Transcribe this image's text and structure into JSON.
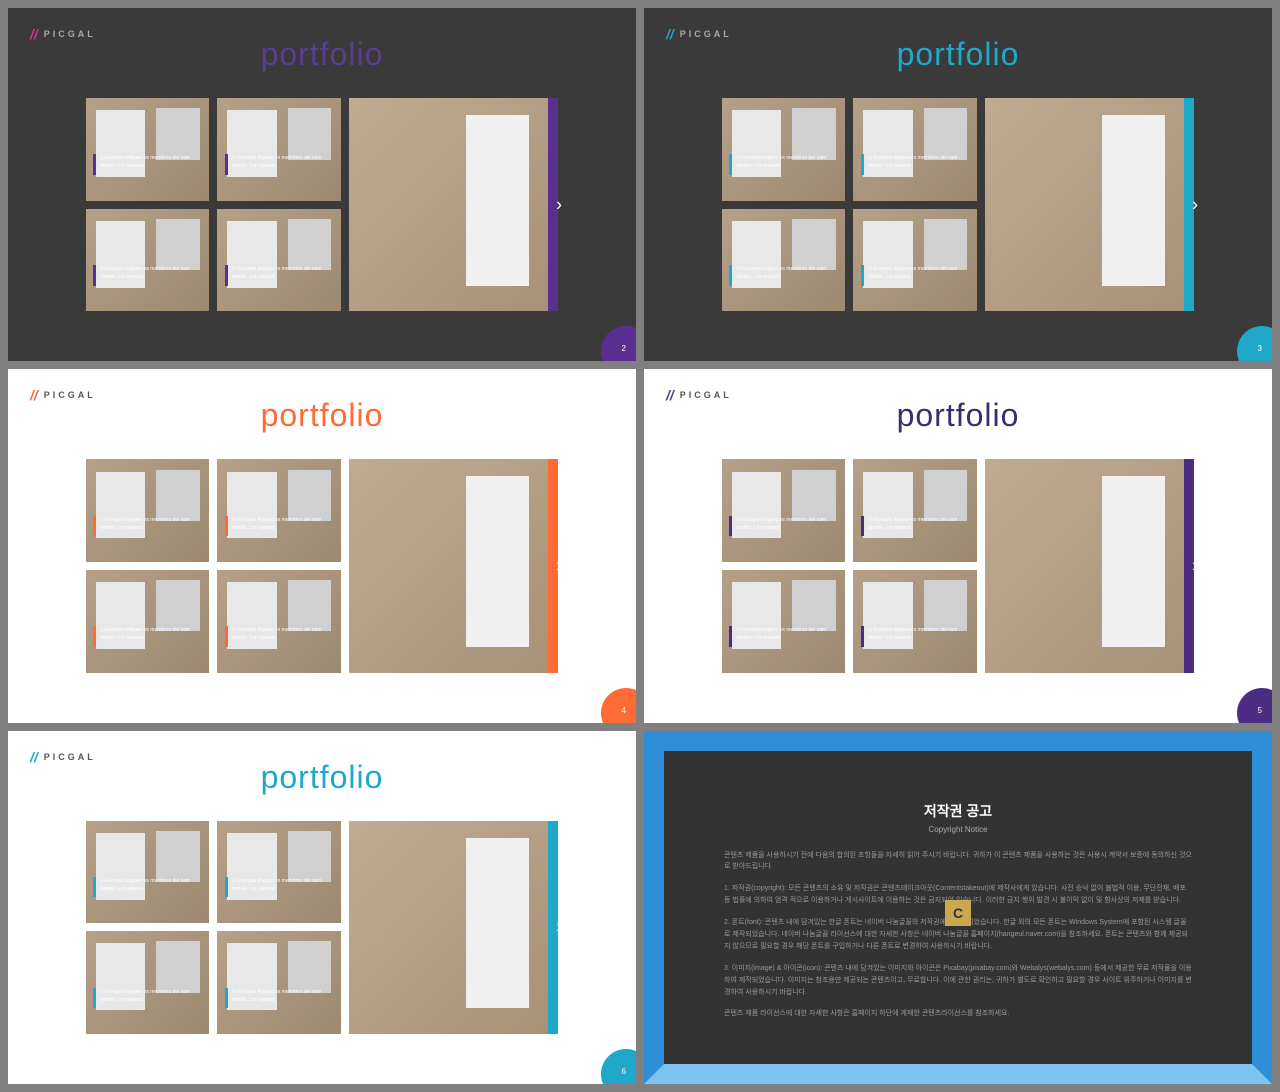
{
  "brand": "PICGAL",
  "title": "portfolio",
  "caption_line1": "Li Europan lingues es membres del sam",
  "caption_line2": "familie. Lor separat",
  "slides": [
    {
      "bg": "dark",
      "title_color": "#5b3e8f",
      "accent": "#5b2e91",
      "logo_color": "#d63384",
      "text_color": "#aaa",
      "page": "2"
    },
    {
      "bg": "dark",
      "title_color": "#1fa8c9",
      "accent": "#1fa8c9",
      "logo_color": "#1fa8c9",
      "text_color": "#aaa",
      "page": "3"
    },
    {
      "bg": "light",
      "title_color": "#ff6b35",
      "accent": "#ff6b35",
      "logo_color": "#ff6b35",
      "text_color": "#555",
      "page": "4"
    },
    {
      "bg": "light",
      "title_color": "#3d2e6b",
      "accent": "#4b2e83",
      "logo_color": "#5b3e8f",
      "text_color": "#555",
      "page": "5"
    },
    {
      "bg": "light",
      "title_color": "#1fa8c9",
      "accent": "#1fa8c9",
      "logo_color": "#1fa8c9",
      "text_color": "#555",
      "page": "6"
    }
  ],
  "copyright": {
    "title": "저작권 공고",
    "subtitle": "Copyright Notice",
    "p1": "콘텐츠 제품을 사용하시기 전에 다음의 합의된 조항들을 자세히 읽어 주시기 바랍니다. 귀하가 이 콘텐츠 제품을 사용하는 것은 사용시 계약서 보증에 동의하신 것으로 받아드립니다.",
    "p2": "1. 저작권(copyright): 모든 콘텐츠의 소유 및 저작권은 콘텐츠테이크아웃(Contentstakeout)에 제작사에게 있습니다. 사전 승낙 없이 불법적 이용, 무단전재, 배포 등 법률에 의하여 엄격 적으로 이용하거나 게시사이트에 이용하는 것은 금지되어 있습니다. 이러한 금지 행위 발견 시 불이익 없이 및 함사상의 저제를 받습니다.",
    "p3": "2. 폰트(font): 콘텐츠 내에 담겨있는 한글 폰트는 네이버 나눔글꼴의 저작권에서 제작되었습니다. 한글 외의 모든 폰트는 Windows System에 포함된 시스템 글꼴로 제작되었습니다. 네이버 나눔글꼴 라이선스에 대한 자세한 사항은 네이버 나눔글꼴 홈페이지(hangeul.naver.com)을 참조하세요. 폰트는 콘텐츠와 함께 제공되지 않으므로 필요할 경우 해당 폰트를 구입하거나 다른 폰트로 변경하여 사용하시기 바랍니다.",
    "p4": "3. 이미지(image) & 아이콘(icon): 콘텐츠 내에 담겨있는 이미지와 아이콘은 Pixabay(pixabay.com)와 Webalys(webalys.com) 등에서 제공한 무료 저작물을 이용하여 제작되었습니다. 이미지는 참조용만 제공되는 콘텐츠이고, 무료합니다. 이에 관한 권리는, 귀하가 별도로 확인하고 필요할 경우 사이트 위주하거나 이미지를 변경하여 사용하시기 바랍니다.",
    "p5": "콘텐츠 제품 라이선스에 대한 자세한 사항은 홈페이지 하단에 게재한 콘텐츠라이선스를 참조하세요."
  }
}
